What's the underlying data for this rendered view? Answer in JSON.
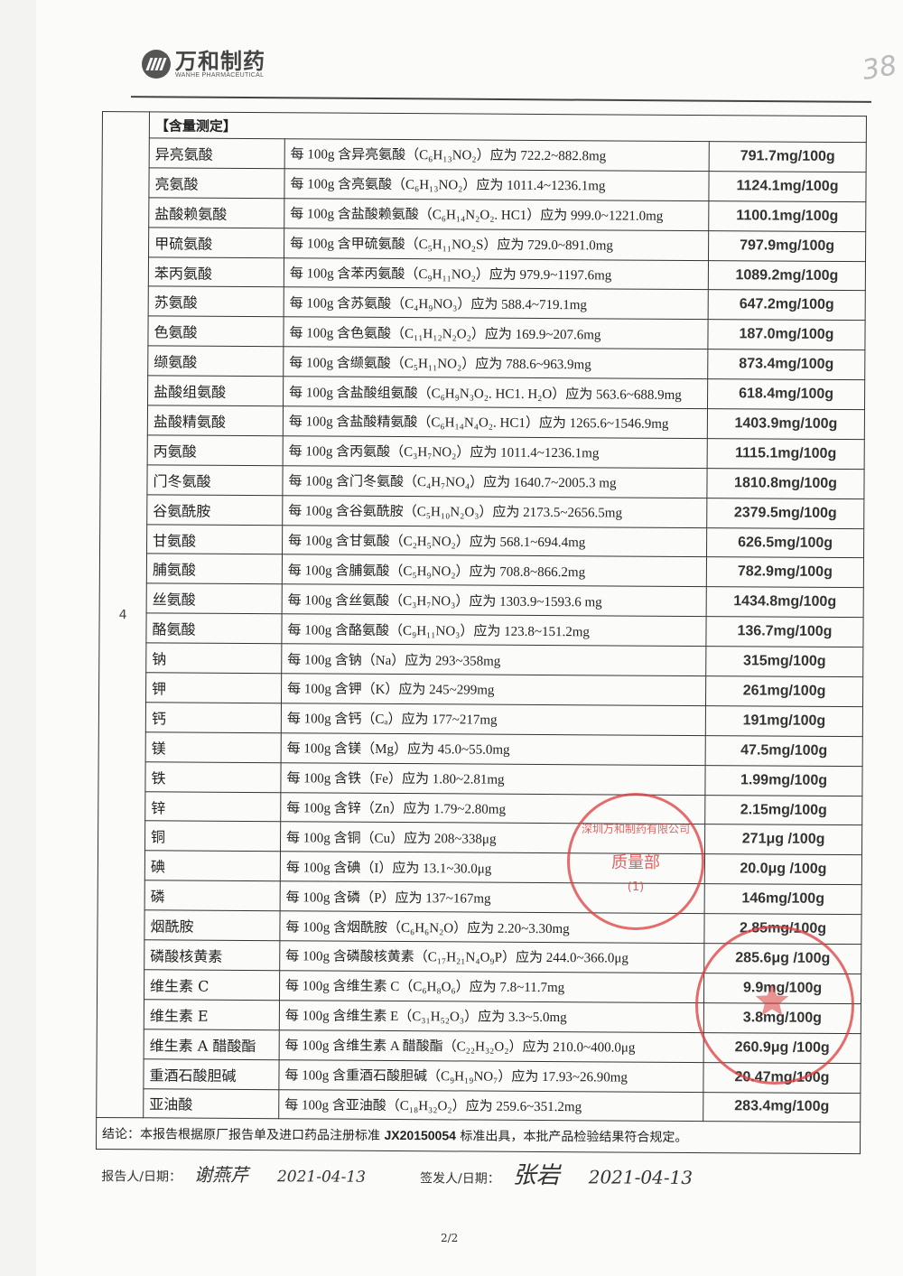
{
  "header": {
    "logo_cn": "万和制药",
    "logo_en": "WANHE PHARMACEUTICAL",
    "page_mark": "38"
  },
  "table": {
    "section_number": "4",
    "section_title": "【含量测定】",
    "rows": [
      {
        "item": "异亮氨酸",
        "spec": "每 100g 含异亮氨酸（C₆H₁₃NO₂）应为 722.2~882.8mg",
        "result": "791.7mg/100g"
      },
      {
        "item": "亮氨酸",
        "spec": "每 100g 含亮氨酸（C₆H₁₃NO₂）应为 1011.4~1236.1mg",
        "result": "1124.1mg/100g"
      },
      {
        "item": "盐酸赖氨酸",
        "spec": "每 100g 含盐酸赖氨酸（C₆H₁₄N₂O₂. HC1）应为 999.0~1221.0mg",
        "result": "1100.1mg/100g"
      },
      {
        "item": "甲硫氨酸",
        "spec": "每 100g 含甲硫氨酸（C₅H₁₁NO₂S）应为 729.0~891.0mg",
        "result": "797.9mg/100g"
      },
      {
        "item": "苯丙氨酸",
        "spec": "每 100g 含苯丙氨酸（C₉H₁₁NO₂）应为 979.9~1197.6mg",
        "result": "1089.2mg/100g"
      },
      {
        "item": "苏氨酸",
        "spec": "每 100g 含苏氨酸（C₄H₉NO₃）应为 588.4~719.1mg",
        "result": "647.2mg/100g"
      },
      {
        "item": "色氨酸",
        "spec": "每 100g 含色氨酸（C₁₁H₁₂N₂O₂）应为 169.9~207.6mg",
        "result": "187.0mg/100g"
      },
      {
        "item": "缬氨酸",
        "spec": "每 100g 含缬氨酸（C₅H₁₁NO₂）应为 788.6~963.9mg",
        "result": "873.4mg/100g"
      },
      {
        "item": "盐酸组氨酸",
        "spec": "每 100g 含盐酸组氨酸（C₆H₉N₃O₂. HC1. H₂O）应为 563.6~688.9mg",
        "result": "618.4mg/100g"
      },
      {
        "item": "盐酸精氨酸",
        "spec": "每 100g 含盐酸精氨酸（C₆H₁₄N₄O₂. HC1）应为 1265.6~1546.9mg",
        "result": "1403.9mg/100g"
      },
      {
        "item": "丙氨酸",
        "spec": "每 100g 含丙氨酸（C₃H₇NO₂）应为 1011.4~1236.1mg",
        "result": "1115.1mg/100g"
      },
      {
        "item": "门冬氨酸",
        "spec": "每 100g 含门冬氨酸（C₄H₇NO₄）应为 1640.7~2005.3 mg",
        "result": "1810.8mg/100g"
      },
      {
        "item": "谷氨酰胺",
        "spec": "每 100g 含谷氨酰胺（C₅H₁₀N₂O₃）应为 2173.5~2656.5mg",
        "result": "2379.5mg/100g"
      },
      {
        "item": "甘氨酸",
        "spec": "每 100g 含甘氨酸（C₂H₅NO₂）应为 568.1~694.4mg",
        "result": "626.5mg/100g"
      },
      {
        "item": "脯氨酸",
        "spec": "每 100g 含脯氨酸（C₅H₉NO₂）应为 708.8~866.2mg",
        "result": "782.9mg/100g"
      },
      {
        "item": "丝氨酸",
        "spec": "每 100g 含丝氨酸（C₃H₇NO₃）应为 1303.9~1593.6 mg",
        "result": "1434.8mg/100g"
      },
      {
        "item": "酪氨酸",
        "spec": "每 100g 含酪氨酸（C₉H₁₁NO₃）应为 123.8~151.2mg",
        "result": "136.7mg/100g"
      },
      {
        "item": "钠",
        "spec": "每 100g 含钠（Na）应为 293~358mg",
        "result": "315mg/100g"
      },
      {
        "item": "钾",
        "spec": "每 100g 含钾（K）应为 245~299mg",
        "result": "261mg/100g"
      },
      {
        "item": "钙",
        "spec": "每 100g 含钙（Cₐ）应为 177~217mg",
        "result": "191mg/100g"
      },
      {
        "item": "镁",
        "spec": "每 100g 含镁（Mg）应为 45.0~55.0mg",
        "result": "47.5mg/100g"
      },
      {
        "item": "铁",
        "spec": "每 100g 含铁（Fe）应为 1.80~2.81mg",
        "result": "1.99mg/100g"
      },
      {
        "item": "锌",
        "spec": "每 100g 含锌（Zn）应为 1.79~2.80mg",
        "result": "2.15mg/100g"
      },
      {
        "item": "铜",
        "spec": "每 100g 含铜（Cu）应为 208~338μg",
        "result": "271μg /100g"
      },
      {
        "item": "碘",
        "spec": "每 100g 含碘（I）应为 13.1~30.0μg",
        "result": "20.0μg /100g"
      },
      {
        "item": "磷",
        "spec": "每 100g 含磷（P）应为 137~167mg",
        "result": "146mg/100g"
      },
      {
        "item": "烟酰胺",
        "spec": "每 100g 含烟酰胺（C₆H₆N₂O）应为 2.20~3.30mg",
        "result": "2.85mg/100g"
      },
      {
        "item": "磷酸核黄素",
        "spec": "每 100g 含磷酸核黄素（C₁₇H₂₁N₄O₉P）应为 244.0~366.0μg",
        "result": "285.6μg /100g"
      },
      {
        "item": "维生素 C",
        "spec": "每 100g 含维生素 C（C₆H₈O₆）应为 7.8~11.7mg",
        "result": "9.9mg/100g"
      },
      {
        "item": "维生素 E",
        "spec": "每 100g 含维生素 E（C₃₁H₅₂O₃）应为 3.3~5.0mg",
        "result": "3.8mg/100g"
      },
      {
        "item": "维生素 A 醋酸酯",
        "spec": "每 100g 含维生素 A 醋酸酯（C₂₂H₃₂O₂）应为 210.0~400.0μg",
        "result": "260.9μg /100g"
      },
      {
        "item": "重酒石酸胆碱",
        "spec": "每 100g 含重酒石酸胆碱（C₉H₁₉NO₇）应为 17.93~26.90mg",
        "result": "20.47mg/100g"
      },
      {
        "item": "亚油酸",
        "spec": "每 100g 含亚油酸（C₁₈H₃₂O₂）应为 259.6~351.2mg",
        "result": "283.4mg/100g"
      }
    ]
  },
  "conclusion": {
    "prefix": "结论：本报告根据原厂报告单及进口药品注册标准 ",
    "standard": "JX20150054",
    "suffix": " 标准出具，本批产品检验结果符合规定。"
  },
  "signatures": {
    "reporter_label": "报告人/日期：",
    "reporter_name": "谢燕芹",
    "reporter_date": "2021-04-13",
    "issuer_label": "签发人/日期：",
    "issuer_name": "张岩",
    "issuer_date": "2021-04-13"
  },
  "seal": {
    "company": "深圳万和制药有限公司",
    "dept": "质量部",
    "number": "(1)"
  },
  "footer": {
    "page": "2/2"
  },
  "colors": {
    "seal_red": "#dc3c3c",
    "ink": "#222222"
  }
}
